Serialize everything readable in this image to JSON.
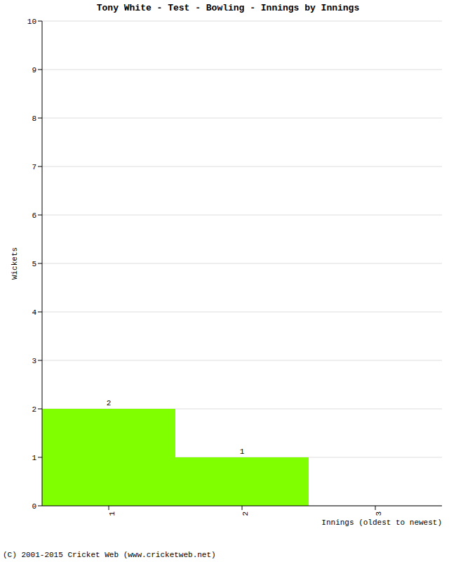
{
  "chart_data": {
    "type": "bar",
    "title": "Tony White - Test - Bowling - Innings by Innings",
    "categories": [
      "1",
      "2",
      "3"
    ],
    "values": [
      2,
      1,
      0
    ],
    "color": "#80ff00",
    "ylim": [
      0,
      10
    ],
    "yticks": [
      0,
      1,
      2,
      3,
      4,
      5,
      6,
      7,
      8,
      9,
      10
    ],
    "grid": true,
    "data_labels": true,
    "xlabel": "Innings (oldest to newest)",
    "ylabel": "Wickets",
    "footer": "(C) 2001-2015 Cricket Web (www.cricketweb.net)"
  }
}
